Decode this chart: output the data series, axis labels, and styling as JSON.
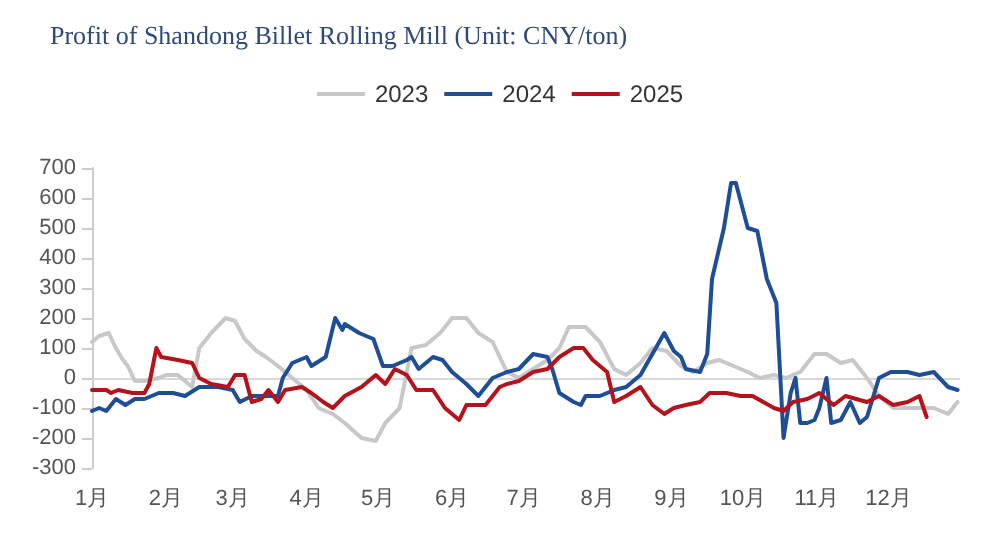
{
  "chart_data": {
    "type": "line",
    "title": "Profit of Shandong Billet Rolling Mill (Unit: CNY/ton)",
    "xlim": [
      "--01-01",
      "--12-31"
    ],
    "xticks": [
      {
        "value": "--01-01",
        "label": "1月"
      },
      {
        "value": "--02-01",
        "label": "2月"
      },
      {
        "value": "--03-01",
        "label": "3月"
      },
      {
        "value": "--04-01",
        "label": "4月"
      },
      {
        "value": "--05-01",
        "label": "5月"
      },
      {
        "value": "--06-01",
        "label": "6月"
      },
      {
        "value": "--07-01",
        "label": "7月"
      },
      {
        "value": "--08-01",
        "label": "8月"
      },
      {
        "value": "--09-01",
        "label": "9月"
      },
      {
        "value": "--10-01",
        "label": "10月"
      },
      {
        "value": "--11-01",
        "label": "11月"
      },
      {
        "value": "--12-01",
        "label": "12月"
      }
    ],
    "ylim": [
      -300,
      700
    ],
    "yticks": [
      -300,
      -200,
      -100,
      0,
      100,
      200,
      300,
      400,
      500,
      600,
      700
    ],
    "grid": false,
    "legend": "top",
    "marker": "none",
    "line_style": "solid",
    "ref_lines": [
      {
        "axis": "y",
        "value": 0,
        "color": "#d9d9d9"
      }
    ],
    "series": [
      {
        "name": "2023",
        "color": "#c8c8c8",
        "x": [
          "--01-01",
          "--01-04",
          "--01-08",
          "--01-11",
          "--01-14",
          "--01-16",
          "--01-19",
          "--01-23",
          "--01-29",
          "--02-01",
          "--02-06",
          "--02-12",
          "--02-15",
          "--02-20",
          "--02-26",
          "--03-02",
          "--03-06",
          "--03-11",
          "--03-15",
          "--03-20",
          "--03-26",
          "--04-01",
          "--04-06",
          "--04-12",
          "--04-17",
          "--04-24",
          "--04-30",
          "--05-04",
          "--05-10",
          "--05-15",
          "--05-21",
          "--05-27",
          "--06-01",
          "--06-07",
          "--06-12",
          "--06-18",
          "--06-24",
          "--06-29",
          "--07-05",
          "--07-11",
          "--07-16",
          "--07-20",
          "--07-27",
          "--08-02",
          "--08-08",
          "--08-13",
          "--08-19",
          "--08-24",
          "--08-30",
          "--09-05",
          "--09-10",
          "--09-16",
          "--09-21",
          "--09-27",
          "--10-03",
          "--10-08",
          "--10-14",
          "--10-19",
          "--10-25",
          "--10-31",
          "--11-05",
          "--11-11",
          "--11-16",
          "--11-22",
          "--11-27",
          "--12-03",
          "--12-09",
          "--12-14",
          "--12-20",
          "--12-26",
          "--12-30"
        ],
        "values": [
          120,
          140,
          150,
          100,
          60,
          40,
          -10,
          -10,
          0,
          10,
          10,
          -30,
          100,
          150,
          200,
          190,
          130,
          90,
          70,
          40,
          0,
          -40,
          -100,
          -120,
          -150,
          -200,
          -210,
          -150,
          -100,
          100,
          110,
          150,
          200,
          200,
          150,
          120,
          20,
          0,
          30,
          60,
          100,
          170,
          170,
          120,
          30,
          10,
          50,
          100,
          90,
          40,
          20,
          50,
          60,
          40,
          20,
          0,
          10,
          0,
          20,
          80,
          80,
          50,
          60,
          0,
          -60,
          -100,
          -100,
          -100,
          -100,
          -120,
          -80
        ]
      },
      {
        "name": "2024",
        "color": "#1f4e96",
        "x": [
          "--01-01",
          "--01-04",
          "--01-07",
          "--01-11",
          "--01-15",
          "--01-19",
          "--01-23",
          "--01-29",
          "--02-04",
          "--02-09",
          "--02-15",
          "--02-23",
          "--03-01",
          "--03-04",
          "--03-09",
          "--03-20",
          "--03-22",
          "--03-26",
          "--04-01",
          "--04-03",
          "--04-09",
          "--04-13",
          "--04-16",
          "--04-17",
          "--04-23",
          "--04-29",
          "--05-03",
          "--05-07",
          "--05-13",
          "--05-15",
          "--05-18",
          "--05-24",
          "--05-28",
          "--06-01",
          "--06-07",
          "--06-12",
          "--06-18",
          "--06-24",
          "--06-29",
          "--07-05",
          "--07-11",
          "--07-13",
          "--07-16",
          "--07-22",
          "--07-25",
          "--07-27",
          "--08-02",
          "--08-08",
          "--08-13",
          "--08-19",
          "--08-24",
          "--08-29",
          "--09-02",
          "--09-05",
          "--09-07",
          "--09-13",
          "--09-16",
          "--09-18",
          "--09-23",
          "--09-26",
          "--09-28",
          "--10-03",
          "--10-07",
          "--10-11",
          "--10-15",
          "--10-18",
          "--10-21",
          "--10-23",
          "--10-25",
          "--10-28",
          "--10-31",
          "--11-02",
          "--11-05",
          "--11-07",
          "--11-11",
          "--11-15",
          "--11-19",
          "--11-22",
          "--11-27",
          "--12-02",
          "--12-09",
          "--12-14",
          "--12-20",
          "--12-26",
          "--12-30"
        ],
        "values": [
          -110,
          -100,
          -110,
          -70,
          -90,
          -70,
          -70,
          -50,
          -50,
          -60,
          -30,
          -30,
          -40,
          -80,
          -60,
          -60,
          0,
          50,
          70,
          40,
          70,
          200,
          160,
          180,
          150,
          130,
          40,
          40,
          60,
          70,
          30,
          70,
          60,
          20,
          -20,
          -60,
          0,
          20,
          30,
          80,
          70,
          30,
          -50,
          -80,
          -90,
          -60,
          -60,
          -40,
          -30,
          10,
          80,
          150,
          90,
          70,
          30,
          20,
          80,
          330,
          500,
          650,
          650,
          500,
          490,
          330,
          250,
          -200,
          -50,
          0,
          -150,
          -150,
          -140,
          -100,
          0,
          -150,
          -140,
          -80,
          -150,
          -130,
          0,
          20,
          20,
          10,
          20,
          -30,
          -40
        ]
      },
      {
        "name": "2025",
        "color": "#b5121b",
        "x": [
          "--01-01",
          "--01-07",
          "--01-09",
          "--01-12",
          "--01-18",
          "--01-23",
          "--01-25",
          "--01-28",
          "--01-30",
          "--02-06",
          "--02-12",
          "--02-15",
          "--02-20",
          "--02-27",
          "--03-02",
          "--03-06",
          "--03-09",
          "--03-13",
          "--03-16",
          "--03-20",
          "--03-23",
          "--03-30",
          "--04-03",
          "--04-08",
          "--04-12",
          "--04-17",
          "--04-24",
          "--04-30",
          "--05-04",
          "--05-08",
          "--05-13",
          "--05-17",
          "--05-24",
          "--05-29",
          "--06-04",
          "--06-07",
          "--06-15",
          "--06-21",
          "--06-24",
          "--06-29",
          "--07-05",
          "--07-11",
          "--07-16",
          "--07-22",
          "--07-26",
          "--07-30",
          "--08-05",
          "--08-08",
          "--08-13",
          "--08-19",
          "--08-24",
          "--08-29",
          "--09-02",
          "--09-07",
          "--09-13",
          "--09-17",
          "--09-24",
          "--09-30",
          "--10-05",
          "--10-14",
          "--10-18",
          "--10-22",
          "--10-28",
          "--11-02",
          "--11-08",
          "--11-13",
          "--11-22",
          "--11-27",
          "--12-03",
          "--12-09",
          "--12-14",
          "--12-17"
        ],
        "values": [
          -40,
          -40,
          -50,
          -40,
          -50,
          -50,
          -20,
          100,
          70,
          60,
          50,
          0,
          -20,
          -30,
          10,
          10,
          -80,
          -70,
          -40,
          -80,
          -40,
          -30,
          -50,
          -80,
          -100,
          -60,
          -30,
          10,
          -20,
          30,
          10,
          -40,
          -40,
          -100,
          -140,
          -90,
          -90,
          -30,
          -20,
          -10,
          20,
          30,
          70,
          100,
          100,
          60,
          20,
          -80,
          -60,
          -30,
          -90,
          -120,
          -100,
          -90,
          -80,
          -50,
          -50,
          -60,
          -60,
          -100,
          -110,
          -80,
          -70,
          -50,
          -90,
          -60,
          -80,
          -60,
          -90,
          -80,
          -60,
          -130
        ]
      }
    ]
  }
}
